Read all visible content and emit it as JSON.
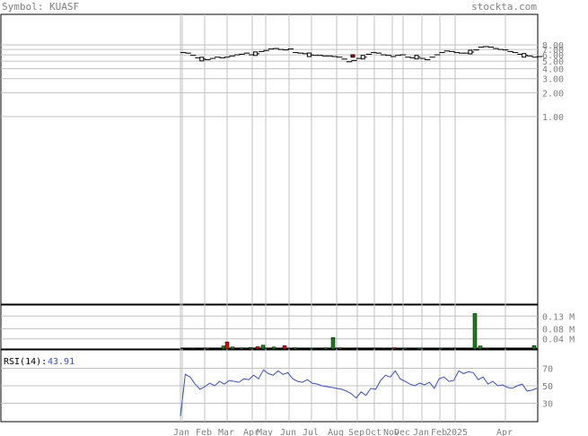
{
  "header": {
    "symbol_text": "Symbol: KUASF",
    "site": "stockta.com"
  },
  "rsi": {
    "label": "RSI(14):",
    "value": "43.91"
  },
  "colors": {
    "background": "#ffffff",
    "grid": "#c0c0c0",
    "text": "#808080",
    "rsi_line": "#3b50b4",
    "volume_up": "#1f7a1f",
    "volume_down": "#cc1111",
    "price_up_bar": "#ffffff",
    "price_down_bar": "#cc1111"
  },
  "chart_data": [
    {
      "type": "candlestick",
      "title": "",
      "scale": "log",
      "y_ticks": [
        "8.00",
        "7.00",
        "6.00",
        "5.00",
        "4.00",
        "3.00",
        "2.00",
        "1.00"
      ],
      "x_ticks": [
        "Jan",
        "Feb",
        "Mar",
        "Apr",
        "May",
        "Jun",
        "Jul",
        "Aug",
        "Sep",
        "Oct",
        "Nov",
        "Dec",
        "Jan",
        "Feb",
        "2025",
        "Apr"
      ],
      "close": [
        6.4,
        6.3,
        5.9,
        5.5,
        5.3,
        5.2,
        5.4,
        5.6,
        5.5,
        5.6,
        5.8,
        6.0,
        6.1,
        6.3,
        6.0,
        6.2,
        6.6,
        6.8,
        7.1,
        7.2,
        7.0,
        6.9,
        7.1,
        6.4,
        6.3,
        6.2,
        6.0,
        5.9,
        5.9,
        5.8,
        5.8,
        5.7,
        5.6,
        5.3,
        4.9,
        5.1,
        5.4,
        5.6,
        6.1,
        6.4,
        6.3,
        6.0,
        5.9,
        5.7,
        5.9,
        6.0,
        5.6,
        5.5,
        5.6,
        5.4,
        5.2,
        5.6,
        6.0,
        6.4,
        6.7,
        6.6,
        6.4,
        6.3,
        6.3,
        6.5,
        6.9,
        7.5,
        7.6,
        7.5,
        7.2,
        7.0,
        6.9,
        6.6,
        6.4,
        6.1,
        5.9,
        5.8,
        5.6,
        5.7
      ],
      "down_bars": [
        [
          4.7,
          6.0,
          5.6
        ]
      ]
    },
    {
      "type": "bar",
      "title": "",
      "y_ticks": [
        "0.13 M",
        "0.08 M",
        "0.04 M"
      ],
      "ylim": [
        0,
        0.17
      ],
      "unit": "M",
      "volumes": [
        [
          6,
          0.003,
          "up"
        ],
        [
          14,
          0.004,
          "up"
        ],
        [
          23,
          0.012,
          "up"
        ],
        [
          25,
          0.028,
          "down"
        ],
        [
          28,
          0.008,
          "up"
        ],
        [
          33,
          0.005,
          "up"
        ],
        [
          38,
          0.006,
          "up"
        ],
        [
          42,
          0.009,
          "down"
        ],
        [
          45,
          0.015,
          "up"
        ],
        [
          51,
          0.008,
          "up"
        ],
        [
          57,
          0.013,
          "down"
        ],
        [
          63,
          0.005,
          "up"
        ],
        [
          72,
          0.004,
          "up"
        ],
        [
          80,
          0.005,
          "up"
        ],
        [
          84,
          0.045,
          "up"
        ],
        [
          88,
          0.005,
          "up"
        ],
        [
          112,
          0.003,
          "up"
        ],
        [
          118,
          0.005,
          "down"
        ],
        [
          124,
          0.004,
          "up"
        ],
        [
          132,
          0.004,
          "up"
        ],
        [
          144,
          0.004,
          "up"
        ],
        [
          150,
          0.003,
          "up"
        ],
        [
          163,
          0.14,
          "up"
        ],
        [
          166,
          0.012,
          "up"
        ],
        [
          170,
          0.003,
          "up"
        ],
        [
          196,
          0.013,
          "up"
        ]
      ]
    },
    {
      "type": "line",
      "title": "",
      "y_ticks": [
        "70",
        "50",
        "30"
      ],
      "ylim": [
        10,
        90
      ],
      "values": [
        15,
        63,
        60,
        52,
        46,
        49,
        53,
        50,
        55,
        52,
        56,
        55,
        54,
        58,
        57,
        62,
        58,
        68,
        64,
        62,
        67,
        63,
        65,
        58,
        55,
        54,
        57,
        53,
        52,
        50,
        49,
        48,
        47,
        46,
        44,
        41,
        36,
        43,
        39,
        47,
        46,
        56,
        62,
        60,
        67,
        58,
        55,
        52,
        50,
        53,
        51,
        54,
        47,
        58,
        60,
        55,
        56,
        67,
        64,
        66,
        65,
        57,
        60,
        52,
        55,
        50,
        51,
        48,
        47,
        50,
        52,
        44,
        45,
        47
      ]
    }
  ]
}
